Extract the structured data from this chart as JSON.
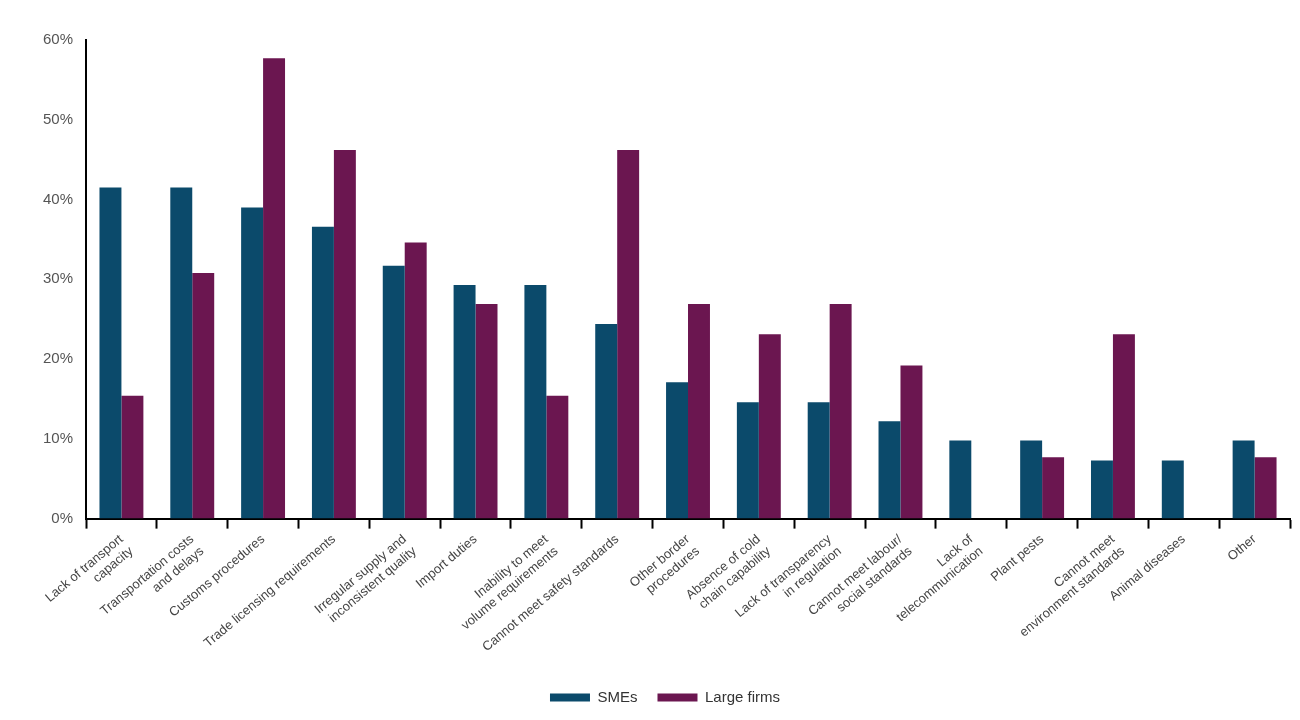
{
  "chart_data": {
    "type": "bar",
    "categories": [
      "Lack of transport\ncapacity",
      "Transportation costs\nand delays",
      "Customs procedures",
      "Trade licensing requirements",
      "Irregular supply and\ninconsistent quality",
      "Import duties",
      "Inability to meet\nvolume requirements",
      "Cannot meet safety standards",
      "Other border\nprocedures",
      "Absence of cold\nchain capability",
      "Lack of transparency\nin regulation",
      "Cannot meet labour/\nsocial standards",
      "Lack of\ntelecommunication",
      "Plant pests",
      "Cannot meet\nenvironment standards",
      "Animal diseases",
      "Other"
    ],
    "series": [
      {
        "name": "SMEs",
        "color": "#0b4a6b",
        "values": [
          41.5,
          41.5,
          39,
          36.6,
          31.7,
          29.3,
          29.3,
          24.4,
          17.1,
          14.6,
          14.6,
          12.2,
          9.8,
          9.8,
          7.3,
          7.3,
          9.8
        ]
      },
      {
        "name": "Large firms",
        "color": "#6b1650",
        "values": [
          15.4,
          30.8,
          57.7,
          46.2,
          34.6,
          26.9,
          15.4,
          46.2,
          26.9,
          23.1,
          26.9,
          19.2,
          0,
          7.7,
          23.1,
          0,
          7.7
        ]
      }
    ],
    "ylim": [
      0,
      60
    ],
    "yticks": [
      {
        "value": 0,
        "label": "0%"
      },
      {
        "value": 10,
        "label": "10%"
      },
      {
        "value": 20,
        "label": "20%"
      },
      {
        "value": 30,
        "label": "30%"
      },
      {
        "value": 40,
        "label": "40%"
      },
      {
        "value": 50,
        "label": "50%"
      },
      {
        "value": 60,
        "label": "60%"
      }
    ],
    "grid": false,
    "legend": "bottom"
  }
}
